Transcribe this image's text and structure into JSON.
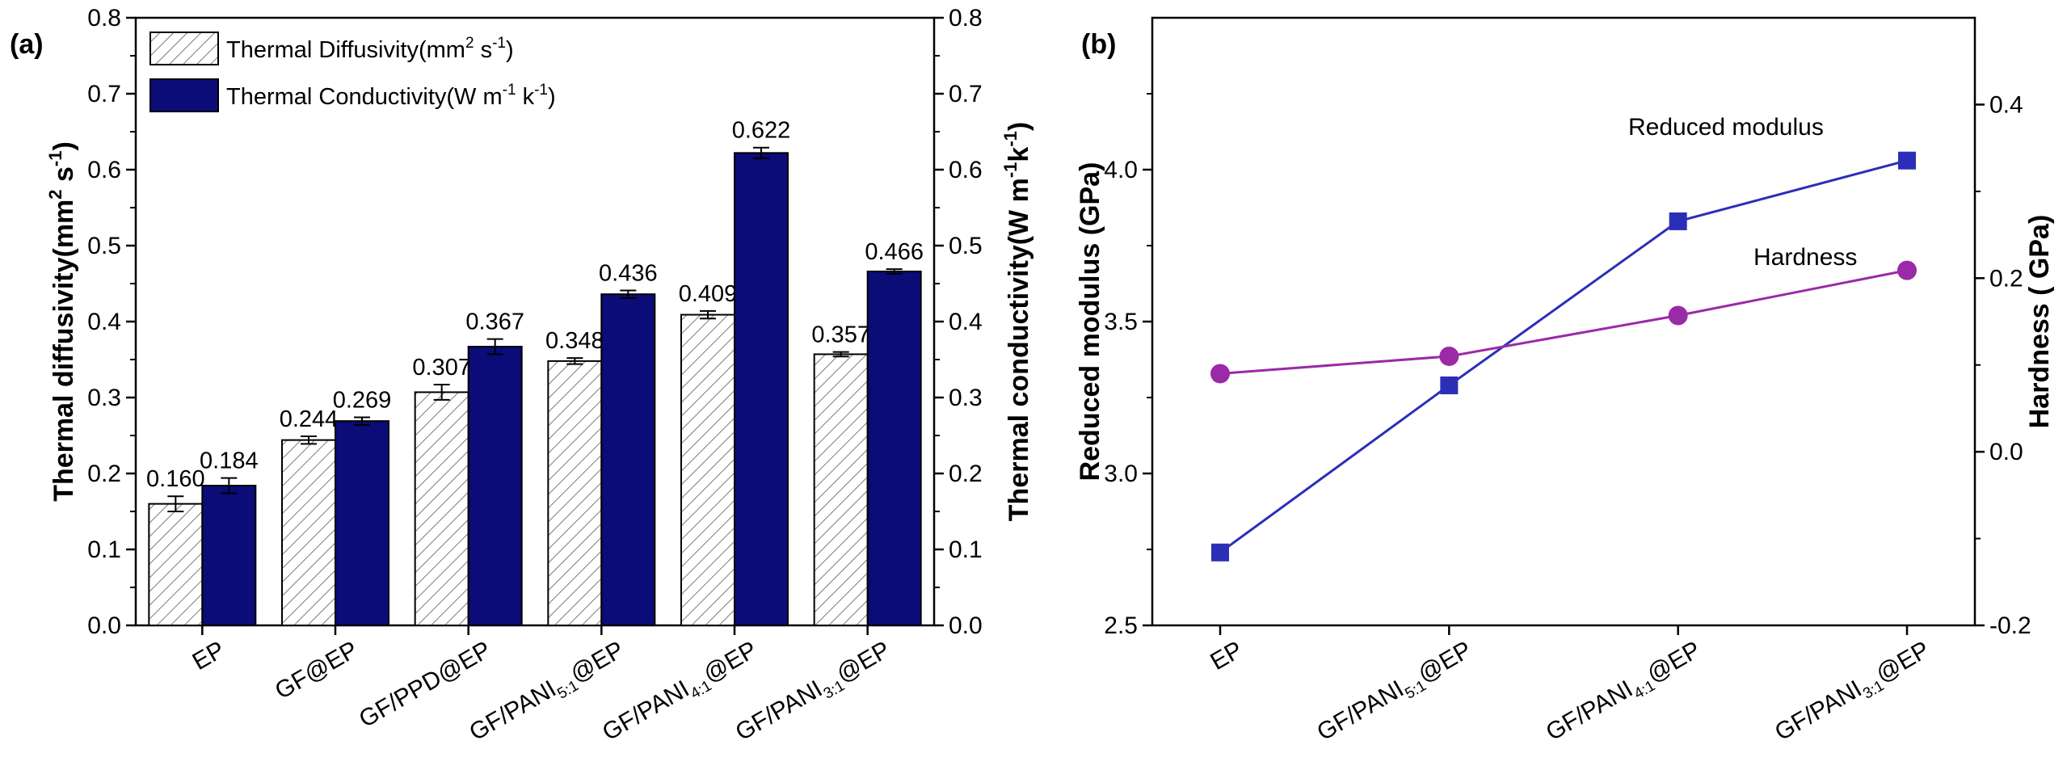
{
  "colors": {
    "conductivity": "#0b0c78",
    "diffusivity_fill": "#ffffff",
    "hatch": "#7a7a7a",
    "modulus": "#2b2fb8",
    "hardness": "#9b2aa6",
    "modulus_label": "#2b3bd0",
    "hardness_label": "#a02aa8"
  },
  "chart_data": [
    {
      "panel": "(a)",
      "type": "bar",
      "categories": [
        "EP",
        "GF@EP",
        "GF/PPD@EP",
        "GF/PANI5:1@EP",
        "GF/PANI4:1@EP",
        "GF/PANI3:1@EP"
      ],
      "category_labels": [
        {
          "base": "EP",
          "sub": "",
          "tail": ""
        },
        {
          "base": "GF@EP",
          "sub": "",
          "tail": ""
        },
        {
          "base": "GF/PPD@EP",
          "sub": "",
          "tail": ""
        },
        {
          "base": "GF/PANI",
          "sub": "5:1",
          "tail": "@EP"
        },
        {
          "base": "GF/PANI",
          "sub": "4:1",
          "tail": "@EP"
        },
        {
          "base": "GF/PANI",
          "sub": "3:1",
          "tail": "@EP"
        }
      ],
      "series": [
        {
          "name": "Thermal Diffusivity(mm² s⁻¹)",
          "values": [
            0.16,
            0.244,
            0.307,
            0.348,
            0.409,
            0.357
          ],
          "labels": [
            "0.160",
            "0.244",
            "0.307",
            "0.348",
            "0.409",
            "0.357"
          ],
          "errors": [
            0.01,
            0.005,
            0.01,
            0.004,
            0.005,
            0.003
          ]
        },
        {
          "name": "Thermal Conductivity(W m⁻¹ k⁻¹)",
          "values": [
            0.184,
            0.269,
            0.367,
            0.436,
            0.622,
            0.466
          ],
          "labels": [
            "0.184",
            "0.269",
            "0.367",
            "0.436",
            "0.622",
            "0.466"
          ],
          "errors": [
            0.01,
            0.005,
            0.01,
            0.005,
            0.007,
            0.003
          ]
        }
      ],
      "legend": [
        {
          "text": "Thermal Diffusivity(mm",
          "sup1": "2",
          "mid": " s",
          "sup2": "-1",
          "end": ")"
        },
        {
          "text": "Thermal Conductivity(W m",
          "sup1": "-1",
          "mid": " k",
          "sup2": "-1",
          "end": ")"
        }
      ],
      "ylabel_left": {
        "text": "Thermal diffusivity(mm",
        "sup1": "2",
        "mid": " s",
        "sup2": "-1",
        "end": ")"
      },
      "ylabel_right": {
        "text": "Thermal conductivity(W m",
        "sup1": "-1",
        "mid": "k",
        "sup2": "-1",
        "end": ")"
      },
      "ylim": [
        0,
        0.8
      ],
      "yticks": [
        "0.0",
        "0.1",
        "0.2",
        "0.3",
        "0.4",
        "0.5",
        "0.6",
        "0.7",
        "0.8"
      ],
      "legend_position": "top-left"
    },
    {
      "panel": "(b)",
      "type": "line",
      "categories": [
        "EP",
        "GF/PANI5:1@EP",
        "GF/PANI4:1@EP",
        "GF/PANI3:1@EP"
      ],
      "category_labels": [
        {
          "base": "EP",
          "sub": "",
          "tail": ""
        },
        {
          "base": "GF/PANI",
          "sub": "5:1",
          "tail": "@EP"
        },
        {
          "base": "GF/PANI",
          "sub": "4:1",
          "tail": "@EP"
        },
        {
          "base": "GF/PANI",
          "sub": "3:1",
          "tail": "@EP"
        }
      ],
      "series": [
        {
          "name": "Reduced modulus",
          "axis": "left",
          "marker": "square",
          "values": [
            2.74,
            3.29,
            3.83,
            4.03
          ]
        },
        {
          "name": "Hardness",
          "axis": "right",
          "marker": "circle",
          "values": [
            0.09,
            0.11,
            0.157,
            0.209
          ]
        }
      ],
      "ylabel_left": "Reduced modulus (GPa)",
      "ylabel_right": "Hardness ( GPa)",
      "ylim_left": [
        2.5,
        4.5
      ],
      "ylim_right": [
        -0.2,
        0.5
      ],
      "yticks_left": [
        "2.5",
        "3.0",
        "3.5",
        "4.0"
      ],
      "yticks_right": [
        "-0.2",
        "0.0",
        "0.2",
        "0.4"
      ]
    }
  ]
}
